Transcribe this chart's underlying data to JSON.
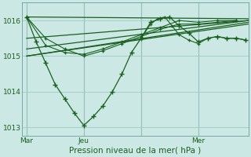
{
  "xlabel": "Pression niveau de la mer( hPa )",
  "background_color": "#cce8e4",
  "grid_color": "#a0c8c4",
  "line_color": "#1a6020",
  "ylim": [
    1012.75,
    1016.5
  ],
  "xlim": [
    0,
    95
  ],
  "yticks": [
    1013,
    1014,
    1015,
    1016
  ],
  "ytick_labels": [
    "1013",
    "1014",
    "1015",
    "1016"
  ],
  "xtick_positions": [
    2,
    26,
    50,
    74
  ],
  "xtick_labels": [
    "Mar",
    "Jeu",
    "",
    "Mer"
  ],
  "vline_positions": [
    2,
    26,
    50,
    74
  ],
  "ensemble_lines": [
    {
      "x": [
        2,
        95
      ],
      "y": [
        1016.1,
        1016.05
      ]
    },
    {
      "x": [
        2,
        95
      ],
      "y": [
        1015.5,
        1016.0
      ]
    },
    {
      "x": [
        2,
        95
      ],
      "y": [
        1015.2,
        1016.0
      ]
    },
    {
      "x": [
        2,
        95
      ],
      "y": [
        1015.0,
        1015.95
      ]
    },
    {
      "x": [
        2,
        95
      ],
      "y": [
        1015.0,
        1015.9
      ]
    }
  ],
  "main_line": {
    "x": [
      2,
      6,
      10,
      14,
      18,
      22,
      26,
      30,
      34,
      38,
      42,
      46,
      50,
      54,
      58,
      62,
      66,
      70,
      74,
      78,
      82,
      86,
      90,
      94
    ],
    "y": [
      1016.1,
      1015.4,
      1014.8,
      1014.2,
      1013.8,
      1013.4,
      1013.05,
      1013.3,
      1013.6,
      1014.0,
      1014.5,
      1015.1,
      1015.5,
      1015.95,
      1016.05,
      1016.1,
      1015.85,
      1015.65,
      1015.4,
      1015.5,
      1015.55,
      1015.5,
      1015.5,
      1015.45
    ]
  },
  "extra_line1": {
    "x": [
      2,
      10,
      18,
      26,
      34,
      42,
      50,
      58,
      66,
      74,
      82,
      90
    ],
    "y": [
      1016.1,
      1015.5,
      1015.2,
      1015.0,
      1015.15,
      1015.35,
      1015.55,
      1015.75,
      1015.9,
      1015.9,
      1015.95,
      1016.0
    ]
  },
  "extra_line2": {
    "x": [
      2,
      10,
      18,
      26,
      34,
      42,
      50,
      58,
      66,
      74,
      82,
      90
    ],
    "y": [
      1016.1,
      1015.3,
      1015.1,
      1015.05,
      1015.2,
      1015.4,
      1015.6,
      1015.8,
      1016.0,
      1015.95,
      1016.0,
      1016.0
    ]
  },
  "right_jagged": {
    "x": [
      50,
      54,
      57,
      60,
      63,
      66,
      70,
      74,
      78,
      82,
      86,
      90,
      94
    ],
    "y": [
      1015.5,
      1015.9,
      1016.05,
      1016.1,
      1015.85,
      1015.6,
      1015.45,
      1015.35,
      1015.5,
      1015.55,
      1015.5,
      1015.5,
      1015.45
    ]
  }
}
